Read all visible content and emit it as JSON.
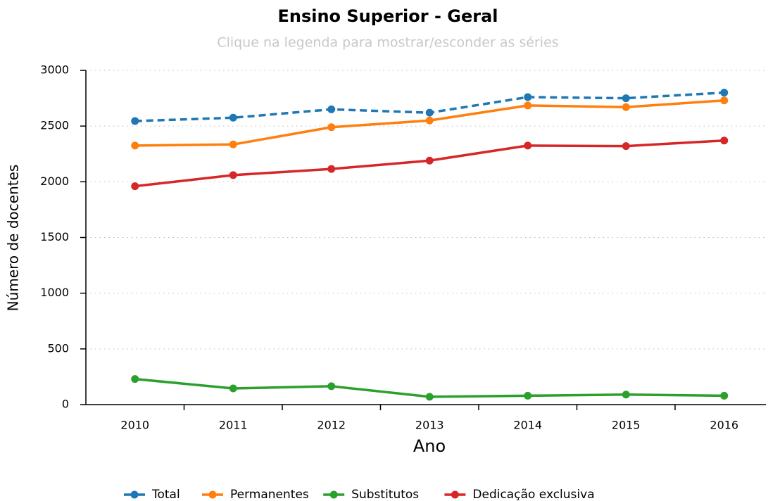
{
  "chart_data": {
    "type": "line",
    "title": "Ensino Superior - Geral",
    "subtitle": "Clique na legenda para mostrar/esconder as séries",
    "x_label": "Ano",
    "y_label": "Número de docentes",
    "categories": [
      "2010",
      "2011",
      "2012",
      "2013",
      "2014",
      "2015",
      "2016"
    ],
    "series": [
      {
        "name": "Total",
        "color": "#1f77b4",
        "dashed": true,
        "values": [
          2545,
          2575,
          2650,
          2620,
          2760,
          2750,
          2800
        ]
      },
      {
        "name": "Permanentes",
        "color": "#ff7f0e",
        "values": [
          2325,
          2335,
          2490,
          2550,
          2685,
          2670,
          2730
        ]
      },
      {
        "name": "Substitutos",
        "color": "#2ca02c",
        "values": [
          230,
          145,
          165,
          70,
          80,
          90,
          80
        ]
      },
      {
        "name": "Dedicação exclusiva",
        "color": "#d62728",
        "values": [
          1960,
          2060,
          2115,
          2190,
          2325,
          2320,
          2370
        ]
      }
    ],
    "ylim": [
      0,
      3000
    ],
    "yticks": [
      0,
      500,
      1000,
      1500,
      2000,
      2500,
      3000
    ],
    "grid": true,
    "legend": "bottom"
  }
}
